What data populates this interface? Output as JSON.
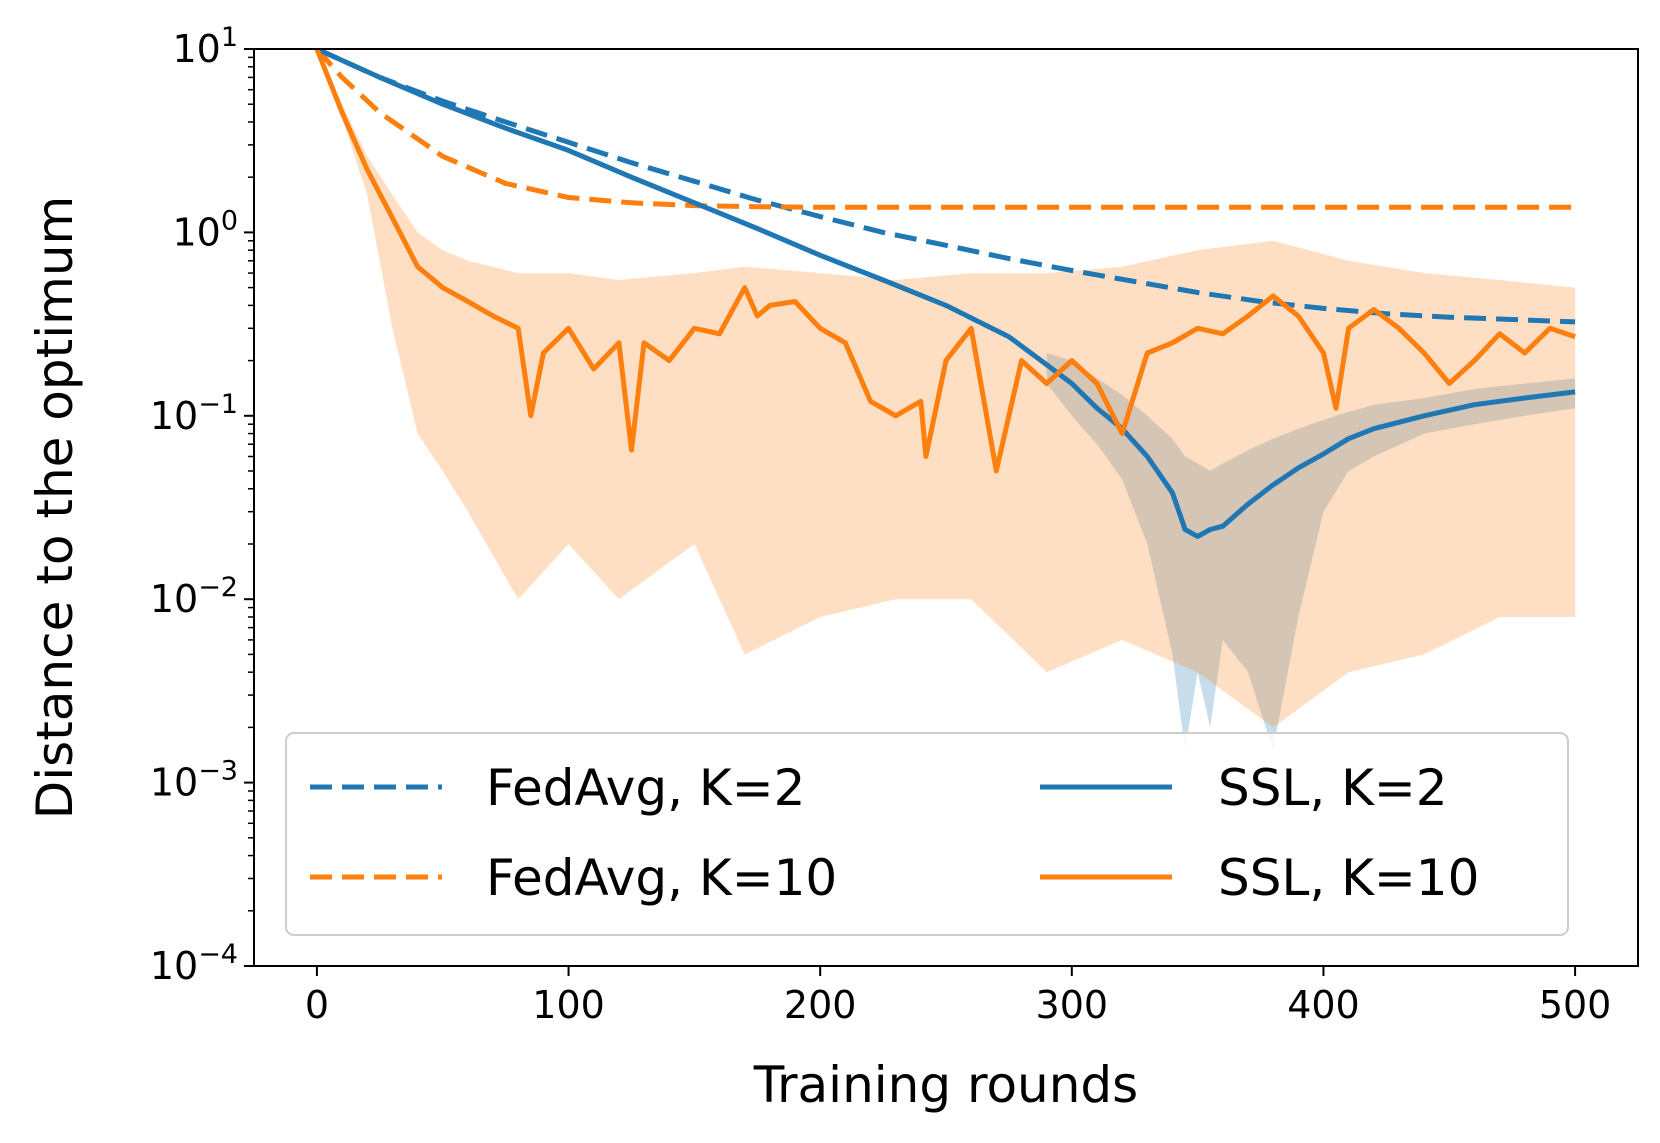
{
  "chart_data": {
    "type": "line",
    "title": "",
    "xlabel": "Training rounds",
    "ylabel": "Distance to the optimum",
    "xlim": [
      -25,
      525
    ],
    "ylim": [
      0.0001,
      10
    ],
    "yscale": "log",
    "xticks": [
      0,
      100,
      200,
      300,
      400,
      500
    ],
    "xtick_labels": [
      "0",
      "100",
      "200",
      "300",
      "400",
      "500"
    ],
    "yticks": [
      {
        "value": 10,
        "base": "10",
        "exp": "1"
      },
      {
        "value": 1,
        "base": "10",
        "exp": "0"
      },
      {
        "value": 0.1,
        "base": "10",
        "exp": "−1"
      },
      {
        "value": 0.01,
        "base": "10",
        "exp": "−2"
      },
      {
        "value": 0.001,
        "base": "10",
        "exp": "−3"
      },
      {
        "value": 0.0001,
        "base": "10",
        "exp": "−4"
      }
    ],
    "grid": false,
    "legend_position": "lower-center",
    "legend_columns": 2,
    "series": [
      {
        "name": "FedAvg, K=2",
        "color": "#1f77b4",
        "style": "dashed",
        "x": [
          0,
          25,
          50,
          75,
          100,
          125,
          150,
          175,
          200,
          225,
          250,
          275,
          300,
          325,
          350,
          375,
          400,
          425,
          450,
          475,
          500
        ],
        "y": [
          10,
          7.0,
          5.2,
          4.0,
          3.1,
          2.4,
          1.9,
          1.5,
          1.22,
          1.0,
          0.85,
          0.72,
          0.62,
          0.54,
          0.47,
          0.42,
          0.385,
          0.36,
          0.345,
          0.335,
          0.325
        ]
      },
      {
        "name": "FedAvg, K=10",
        "color": "#ff7f0e",
        "style": "dashed",
        "x": [
          0,
          10,
          25,
          50,
          75,
          100,
          125,
          150,
          175,
          200,
          250,
          300,
          350,
          400,
          450,
          500
        ],
        "y": [
          10,
          7.0,
          4.5,
          2.6,
          1.85,
          1.55,
          1.45,
          1.4,
          1.38,
          1.37,
          1.37,
          1.37,
          1.37,
          1.37,
          1.37,
          1.37
        ]
      },
      {
        "name": "SSL, K=2",
        "color": "#1f77b4",
        "style": "solid",
        "x": [
          0,
          25,
          50,
          75,
          100,
          125,
          150,
          175,
          200,
          225,
          250,
          275,
          290,
          300,
          310,
          320,
          330,
          340,
          345,
          350,
          355,
          360,
          370,
          380,
          390,
          400,
          410,
          420,
          440,
          460,
          480,
          500
        ],
        "y": [
          10,
          7.0,
          5.0,
          3.7,
          2.8,
          2.0,
          1.45,
          1.05,
          0.75,
          0.55,
          0.4,
          0.27,
          0.19,
          0.15,
          0.11,
          0.085,
          0.06,
          0.038,
          0.024,
          0.022,
          0.024,
          0.025,
          0.033,
          0.042,
          0.052,
          0.062,
          0.075,
          0.085,
          0.1,
          0.115,
          0.125,
          0.135
        ],
        "band": {
          "color": "#1f77b4",
          "x": [
            290,
            300,
            310,
            320,
            330,
            340,
            345,
            350,
            355,
            360,
            370,
            380,
            390,
            400,
            410,
            420,
            440,
            460,
            480,
            500
          ],
          "lower": [
            0.15,
            0.1,
            0.07,
            0.045,
            0.02,
            0.005,
            0.0015,
            0.004,
            0.002,
            0.006,
            0.004,
            0.0015,
            0.008,
            0.03,
            0.05,
            0.06,
            0.08,
            0.09,
            0.1,
            0.11
          ],
          "upper": [
            0.22,
            0.2,
            0.16,
            0.13,
            0.1,
            0.075,
            0.06,
            0.055,
            0.05,
            0.055,
            0.065,
            0.075,
            0.085,
            0.095,
            0.105,
            0.115,
            0.125,
            0.14,
            0.15,
            0.16
          ]
        }
      },
      {
        "name": "SSL, K=10",
        "color": "#ff7f0e",
        "style": "solid",
        "x": [
          0,
          10,
          20,
          30,
          40,
          50,
          60,
          70,
          80,
          85,
          90,
          100,
          110,
          120,
          125,
          130,
          140,
          150,
          160,
          170,
          175,
          180,
          190,
          200,
          210,
          220,
          230,
          240,
          242,
          250,
          260,
          270,
          280,
          290,
          300,
          310,
          320,
          330,
          340,
          350,
          360,
          370,
          380,
          390,
          400,
          405,
          410,
          420,
          430,
          440,
          450,
          460,
          470,
          480,
          490,
          500
        ],
        "y": [
          10,
          4.5,
          2.2,
          1.2,
          0.65,
          0.5,
          0.42,
          0.35,
          0.3,
          0.1,
          0.22,
          0.3,
          0.18,
          0.25,
          0.065,
          0.25,
          0.2,
          0.3,
          0.28,
          0.5,
          0.35,
          0.4,
          0.42,
          0.3,
          0.25,
          0.12,
          0.1,
          0.12,
          0.06,
          0.2,
          0.3,
          0.05,
          0.2,
          0.15,
          0.2,
          0.15,
          0.08,
          0.22,
          0.25,
          0.3,
          0.28,
          0.35,
          0.45,
          0.35,
          0.22,
          0.11,
          0.3,
          0.38,
          0.3,
          0.22,
          0.15,
          0.2,
          0.28,
          0.22,
          0.3,
          0.27
        ],
        "band": {
          "color": "#ff7f0e",
          "x": [
            0,
            10,
            20,
            30,
            40,
            50,
            60,
            80,
            100,
            120,
            150,
            170,
            200,
            230,
            260,
            290,
            320,
            350,
            380,
            410,
            440,
            470,
            500
          ],
          "lower": [
            10,
            4.2,
            1.6,
            0.3,
            0.08,
            0.05,
            0.03,
            0.01,
            0.02,
            0.01,
            0.02,
            0.005,
            0.008,
            0.01,
            0.01,
            0.004,
            0.006,
            0.004,
            0.002,
            0.004,
            0.005,
            0.008,
            0.008
          ],
          "upper": [
            10,
            5.0,
            2.6,
            1.6,
            1.0,
            0.8,
            0.7,
            0.6,
            0.6,
            0.55,
            0.6,
            0.65,
            0.6,
            0.55,
            0.6,
            0.6,
            0.65,
            0.8,
            0.9,
            0.7,
            0.6,
            0.55,
            0.5
          ]
        }
      }
    ]
  }
}
